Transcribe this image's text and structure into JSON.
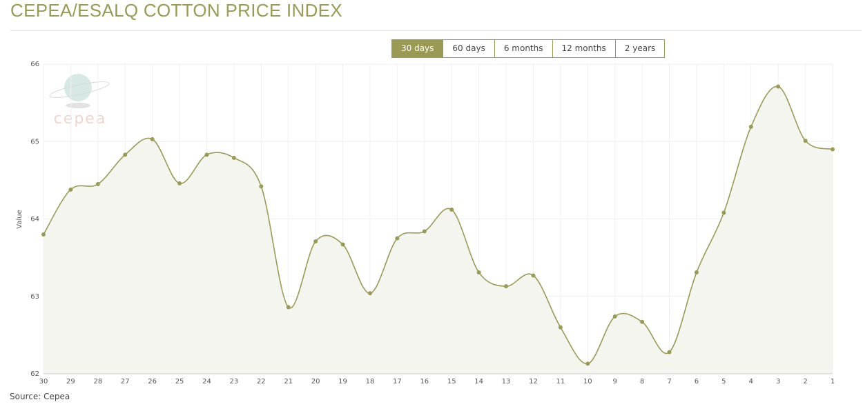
{
  "header": {
    "title": "CEPEA/ESALQ COTTON PRICE INDEX"
  },
  "range_buttons": {
    "options": [
      "30 days",
      "60 days",
      "6 months",
      "12 months",
      "2 years"
    ],
    "active": 0
  },
  "chart_data": {
    "type": "line",
    "y_label": "Value",
    "logo_text": "cepea",
    "source": "Source: Cepea",
    "categories": [
      "30",
      "29",
      "28",
      "27",
      "26",
      "25",
      "24",
      "23",
      "22",
      "21",
      "20",
      "19",
      "18",
      "17",
      "16",
      "15",
      "14",
      "13",
      "12",
      "11",
      "10",
      "9",
      "8",
      "7",
      "6",
      "5",
      "4",
      "3",
      "2",
      "1"
    ],
    "values": [
      63.8,
      64.38,
      64.45,
      64.83,
      65.03,
      64.46,
      64.83,
      64.79,
      64.42,
      62.86,
      63.71,
      63.67,
      63.04,
      63.75,
      63.84,
      64.12,
      63.31,
      63.13,
      63.27,
      62.6,
      62.13,
      62.74,
      62.67,
      62.28,
      63.31,
      64.08,
      65.19,
      65.71,
      65.01,
      64.9
    ],
    "color": "#9a9a55",
    "ylim": [
      62,
      66
    ],
    "yticks": [
      62,
      63,
      64,
      65,
      66
    ],
    "grid": true
  }
}
